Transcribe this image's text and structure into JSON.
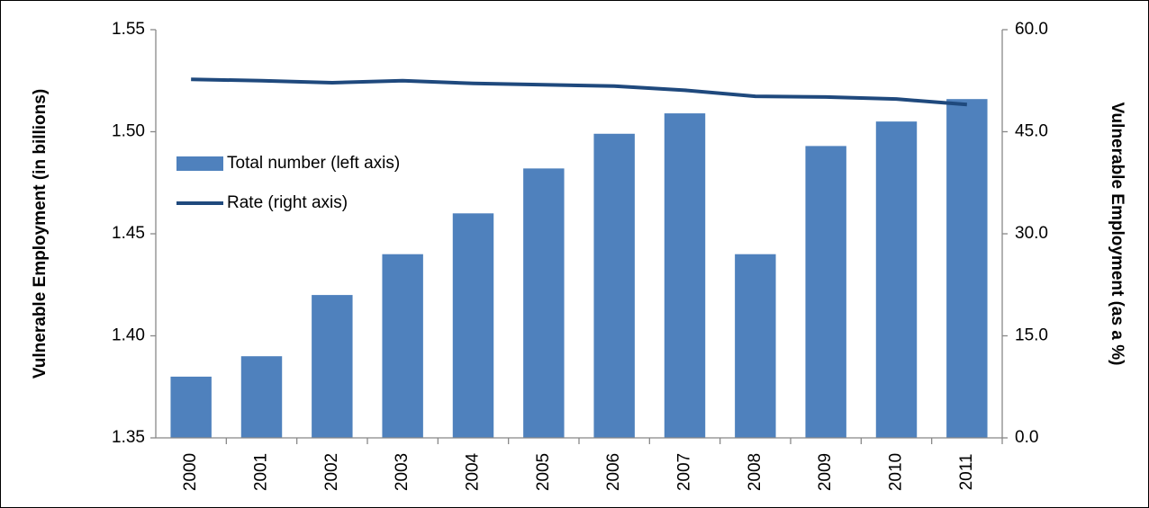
{
  "chart_data": {
    "type": "bar-line",
    "categories": [
      "2000",
      "2001",
      "2002",
      "2003",
      "2004",
      "2005",
      "2006",
      "2007",
      "2008",
      "2009",
      "2010",
      "2011"
    ],
    "series": [
      {
        "name": "Total number (left axis)",
        "type": "bar",
        "color": "#4f81bd",
        "values": [
          1.38,
          1.39,
          1.42,
          1.44,
          1.46,
          1.482,
          1.499,
          1.509,
          1.44,
          1.493,
          1.505,
          1.516
        ]
      },
      {
        "name": "Rate (right axis)",
        "type": "line",
        "axis": "y2",
        "color": "#1f497d",
        "values": [
          52.7,
          52.5,
          52.2,
          52.5,
          52.1,
          51.9,
          51.7,
          51.1,
          50.2,
          50.1,
          49.8,
          49.0
        ]
      }
    ],
    "y_label": "Vulnerable Employment (in billions)",
    "y2_label": "Vulnerable Employment (as a %)",
    "ylim": [
      1.35,
      1.55
    ],
    "yticks": [
      1.35,
      {
        "value": 1.4,
        "label": "1.40"
      },
      1.45,
      {
        "value": 1.5,
        "label": "1.50"
      },
      1.55
    ],
    "y2lim": [
      0,
      60
    ],
    "y2ticks": [
      {
        "value": 0,
        "label": "0.0"
      },
      {
        "value": 15,
        "label": "15.0"
      },
      {
        "value": 30,
        "label": "30.0"
      },
      {
        "value": 45,
        "label": "45.0"
      },
      {
        "value": 60,
        "label": "60.0"
      }
    ],
    "grid": false,
    "legend": "upper left"
  }
}
